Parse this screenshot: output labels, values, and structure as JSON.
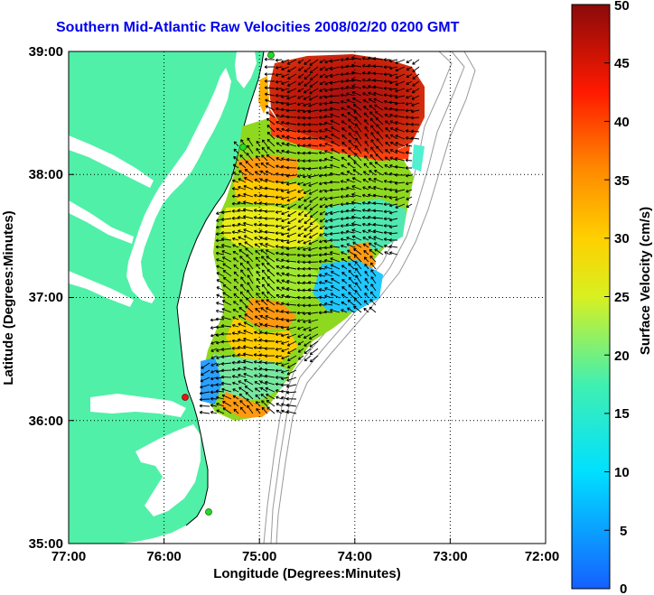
{
  "title": "Southern Mid-Atlantic Raw Velocities 2008/02/20 0200 GMT",
  "x_axis": {
    "label": "Longitude (Degrees:Minutes)",
    "ticks": [
      "77:00",
      "76:00",
      "75:00",
      "74:00",
      "73:00",
      "72:00"
    ]
  },
  "y_axis": {
    "label": "Latitude (Degrees:Minutes)",
    "ticks": [
      "39:00",
      "38:00",
      "37:00",
      "36:00",
      "35:00"
    ]
  },
  "colorbar": {
    "label": "Surface Velocity (cm/s)",
    "ticks": [
      "50",
      "45",
      "40",
      "35",
      "30",
      "25",
      "20",
      "15",
      "10",
      "5",
      "0"
    ],
    "min": 0,
    "max": 50
  },
  "colors": {
    "land": "#50f0a8",
    "title": "#0000ee",
    "station_green": "#22dd22",
    "station_red": "#ee1111"
  }
}
